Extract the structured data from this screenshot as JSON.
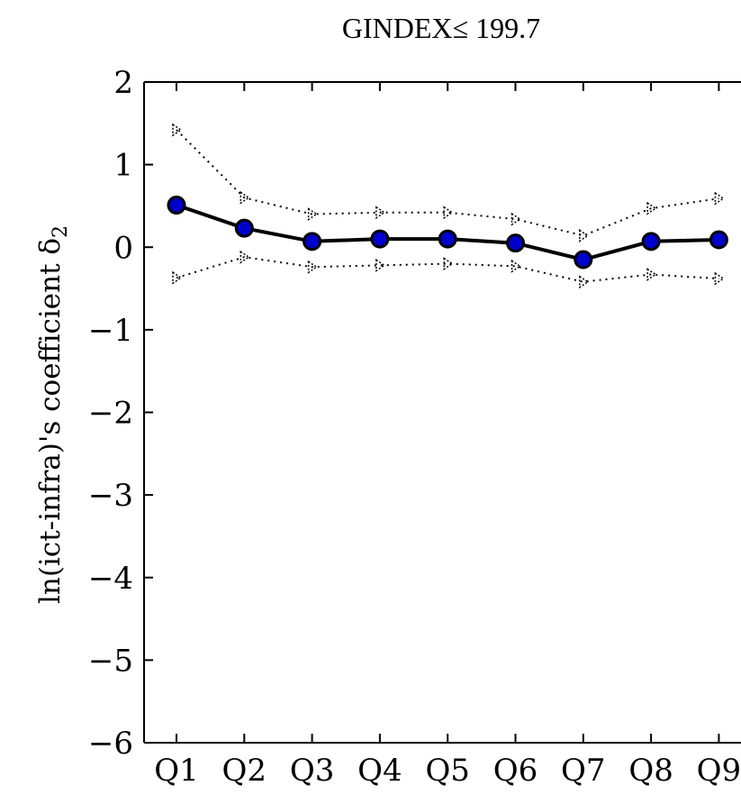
{
  "chart_data": {
    "type": "line",
    "title": "GINDEX≤ 199.7",
    "xlabel": "",
    "ylabel": "ln(ict-infra)'s coefficient δ",
    "ylabel_subscript": "2",
    "categories": [
      "Q1",
      "Q2",
      "Q3",
      "Q4",
      "Q5",
      "Q6",
      "Q7",
      "Q8",
      "Q9"
    ],
    "ylim": [
      -6,
      2
    ],
    "yticks": [
      2,
      1,
      0,
      -1,
      -2,
      -3,
      -4,
      -5,
      -6
    ],
    "ytick_labels": [
      "2",
      "1",
      "0",
      "−1",
      "−2",
      "−3",
      "−4",
      "−5",
      "−6"
    ],
    "grid": false,
    "series": [
      {
        "role": "estimate",
        "style": "solid-with-circle-markers",
        "color": "#0000cc",
        "values": [
          0.51,
          0.23,
          0.07,
          0.1,
          0.1,
          0.05,
          -0.15,
          0.07,
          0.09
        ]
      },
      {
        "role": "upper-bound",
        "style": "dotted-with-triangle-markers",
        "color": "#000000",
        "values": [
          1.42,
          0.6,
          0.4,
          0.42,
          0.42,
          0.34,
          0.14,
          0.47,
          0.59
        ]
      },
      {
        "role": "lower-bound",
        "style": "dotted-with-triangle-markers",
        "color": "#000000",
        "values": [
          -0.37,
          -0.12,
          -0.24,
          -0.22,
          -0.2,
          -0.23,
          -0.42,
          -0.33,
          -0.38
        ]
      }
    ]
  }
}
